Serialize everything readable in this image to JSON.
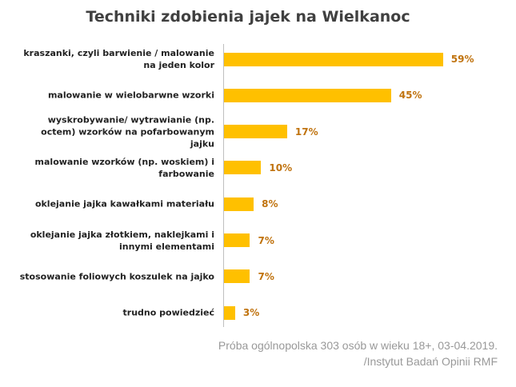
{
  "chart_data": {
    "type": "bar",
    "orientation": "horizontal",
    "title": "Techniki zdobienia jajek na Wielkanoc",
    "categories": [
      "kraszanki, czyli barwienie / malowanie na jeden kolor",
      "malowanie w wielobarwne wzorki",
      "wyskrobywanie/ wytrawianie (np. octem) wzorków na pofarbowanym jajku",
      "malowanie wzorków (np. woskiem) i farbowanie",
      "oklejanie jajka kawałkami materiału",
      "oklejanie jajka złotkiem, naklejkami i innymi elementami",
      "stosowanie foliowych koszulek na jajko",
      "trudno powiedzieć"
    ],
    "values": [
      59,
      45,
      17,
      10,
      8,
      7,
      7,
      3
    ],
    "value_labels": [
      "59%",
      "45%",
      "17%",
      "10%",
      "8%",
      "7%",
      "7%",
      "3%"
    ],
    "color": "#ffc000",
    "label_color": "#c0730f",
    "notes": [
      "Próba ogólnopolska 303 osób w wieku 18+, 03-04.2019.",
      "/Instytut Badań Opinii RMF"
    ]
  }
}
